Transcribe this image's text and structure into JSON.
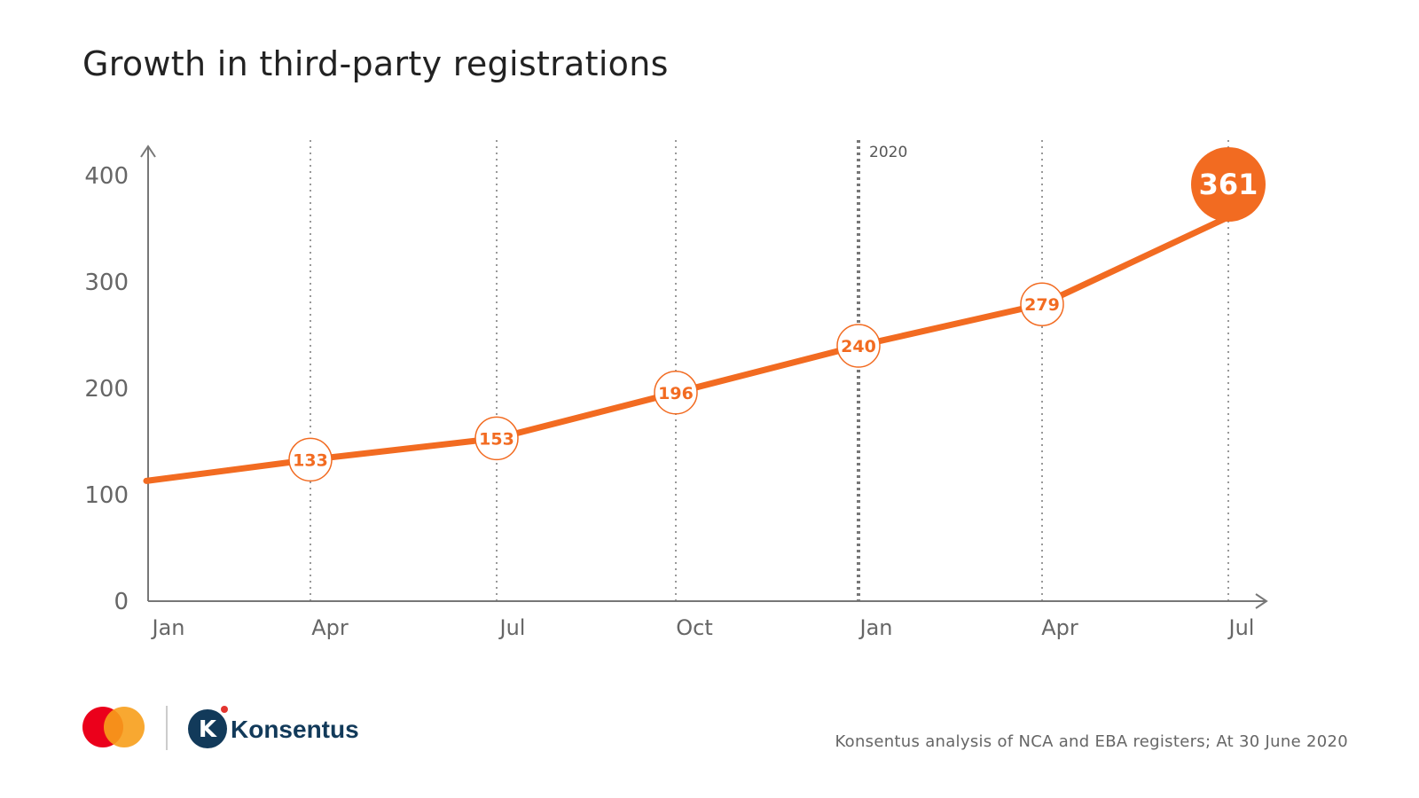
{
  "title": "Growth in third-party registrations",
  "source": "Konsentus analysis of NCA and EBA registers; At 30 June 2020",
  "brand": {
    "konsentus_name": "Konsentus",
    "accent_color": "#f26b21",
    "mc_red": "#eb001b",
    "mc_orange": "#f79e1b",
    "konsentus_color": "#123a5a"
  },
  "chart_data": {
    "type": "line",
    "title": "Growth in third-party registrations",
    "x": [
      "Jan",
      "Apr",
      "Jul",
      "Oct",
      "Jan",
      "Apr",
      "Jul"
    ],
    "y_ticks": [
      0,
      100,
      200,
      300,
      400
    ],
    "ylim": [
      0,
      420
    ],
    "year_marker": {
      "label": "2020",
      "at_index": 4
    },
    "series": [
      {
        "values": [
          113,
          133,
          153,
          196,
          240,
          279,
          361
        ],
        "labels": [
          "",
          "133",
          "153",
          "196",
          "240",
          "279",
          "361"
        ],
        "highlight_last": true,
        "color": "#f26b21"
      }
    ],
    "grid": "vertical-dotted",
    "xlabel": "",
    "ylabel": ""
  }
}
